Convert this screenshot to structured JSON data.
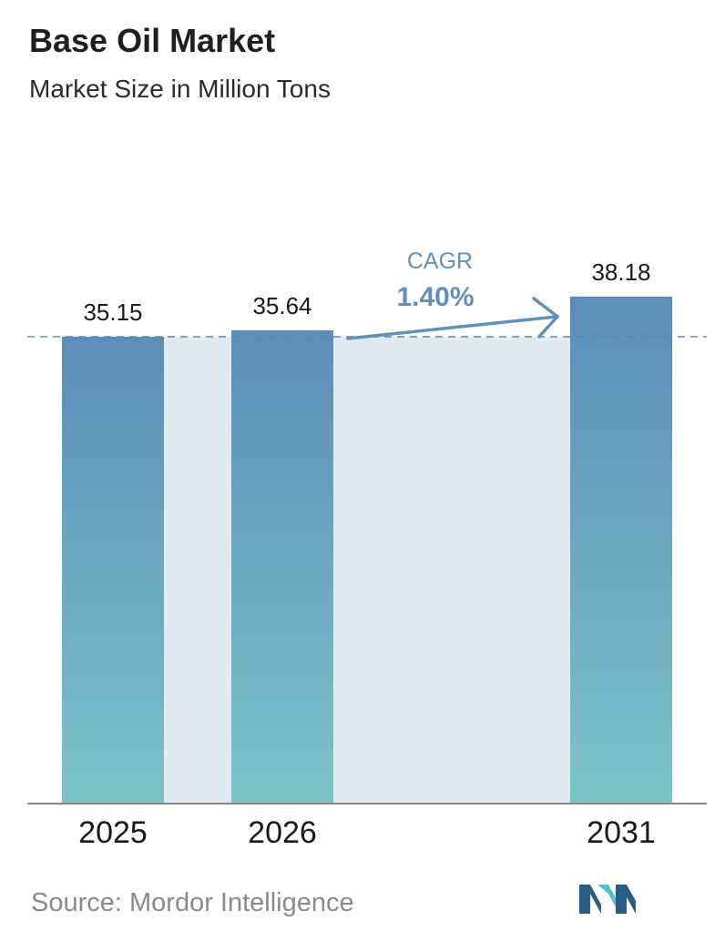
{
  "header": {
    "title": "Base Oil Market",
    "subtitle": "Market Size in Million Tons"
  },
  "chart_data": {
    "type": "bar",
    "title": "Base Oil Market",
    "subtitle": "Market Size in Million Tons",
    "categories": [
      "2025",
      "2026",
      "2031"
    ],
    "values": [
      35.15,
      35.64,
      38.18
    ],
    "value_labels": [
      "35.15",
      "35.64",
      "38.18"
    ],
    "xlabel": "",
    "ylabel": "",
    "reference_line": 35.15,
    "annotation": {
      "label": "CAGR",
      "value": "1.40%"
    },
    "grid": false,
    "legend": "none"
  },
  "footer": {
    "source": "Source: Mordor Intelligence",
    "logo": "mordor-intelligence-logo"
  },
  "colors": {
    "bar_top": "#5b8db8",
    "bar_bottom": "#7cc3c9",
    "band": "#e1e9f1",
    "reference_line": "#5a88ad",
    "annotation": "#6190b8",
    "axis": "#888888",
    "logo_dark": "#2a5d86",
    "logo_light": "#4fc3c9"
  }
}
